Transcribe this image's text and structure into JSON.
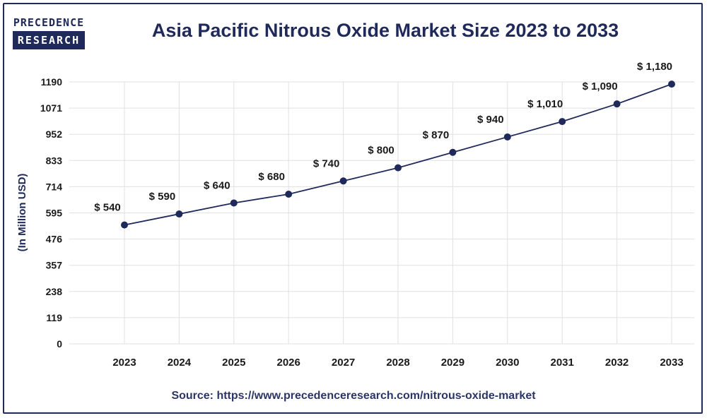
{
  "logo": {
    "line1": "PRECEDENCE",
    "line2": "RESEARCH"
  },
  "source": "Source: https://www.precedenceresearch.com/nitrous-oxide-market",
  "colors": {
    "navy": "#1f2a5a",
    "grid": "#e1e1e1",
    "text": "#1a1a1a"
  },
  "chart_data": {
    "type": "line",
    "title": "Asia Pacific Nitrous Oxide Market Size 2023 to 2033",
    "xlabel": "",
    "ylabel": "(In Million USD)",
    "categories": [
      "2023",
      "2024",
      "2025",
      "2026",
      "2027",
      "2028",
      "2029",
      "2030",
      "2031",
      "2032",
      "2033"
    ],
    "series": [
      {
        "values": [
          540,
          590,
          640,
          680,
          740,
          800,
          870,
          940,
          1010,
          1090,
          1180
        ]
      }
    ],
    "data_labels": [
      "$ 540",
      "$ 590",
      "$ 640",
      "$ 680",
      "$ 740",
      "$ 800",
      "$ 870",
      "$ 940",
      "$ 1,010",
      "$ 1,090",
      "$ 1,180"
    ],
    "yticks": [
      0,
      119,
      238,
      357,
      476,
      595,
      714,
      833,
      952,
      1071,
      1190
    ],
    "ylim": [
      0,
      1190
    ],
    "grid": true,
    "legend": "none"
  }
}
